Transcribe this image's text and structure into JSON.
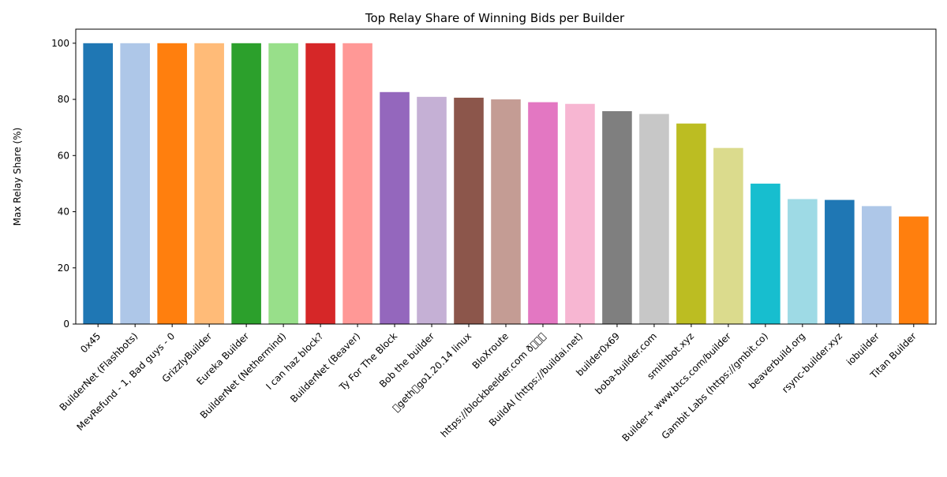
{
  "chart_data": {
    "type": "bar",
    "title": "Top Relay Share of Winning Bids per Builder",
    "xlabel": "",
    "ylabel": "Max Relay Share (%)",
    "ylim": [
      0,
      105
    ],
    "yticks": [
      0,
      20,
      40,
      60,
      80,
      100
    ],
    "grid": false,
    "categories": [
      "0x45",
      "BuilderNet (Flashbots)",
      "MevRefund - 1, Bad guys - 0",
      "GrizzlyBuilder",
      "Eureka Builder",
      "BuilderNet (Nethermind)",
      "I can haz block?",
      "BuilderNet (Beaver)",
      "Ty For The Block",
      "Bob the builder",
      "\u0000geth\u0000go1.20.14 linux",
      "BloXroute",
      "https://blockbeelder.com ð\u0000\u0000\u0000",
      "BuildAI (https://buildai.net)",
      "builder0x69",
      "boba-builder.com",
      "smithbot.xyz",
      "Builder+ www.btcs.com/builder",
      "Gambit Labs (https://gmbit.co)",
      "beaverbuild.org",
      "rsync-builder.xyz",
      "iobuilder",
      "Titan Builder"
    ],
    "values": [
      100,
      100,
      100,
      100,
      100,
      100,
      100,
      100,
      82.6,
      80.9,
      80.6,
      80.0,
      79.0,
      78.4,
      75.8,
      74.8,
      71.4,
      62.7,
      50.0,
      44.5,
      44.2,
      42.0,
      38.3
    ],
    "colors": [
      "#1f77b4",
      "#aec7e8",
      "#ff7f0e",
      "#ffbb78",
      "#2ca02c",
      "#98df8a",
      "#d62728",
      "#ff9896",
      "#9467bd",
      "#c5b0d5",
      "#8c564b",
      "#c49c94",
      "#e377c2",
      "#f7b6d2",
      "#7f7f7f",
      "#c7c7c7",
      "#bcbd22",
      "#dbdb8d",
      "#17becf",
      "#9edae5",
      "#1f77b4",
      "#aec7e8",
      "#ff7f0e"
    ]
  }
}
